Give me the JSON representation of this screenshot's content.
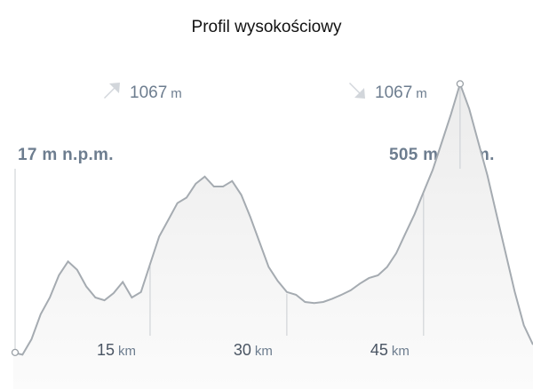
{
  "title": "Profil wysokościowy",
  "stats": {
    "ascent": {
      "value": "1067",
      "unit": "m",
      "icon": "arrow-up-right-icon"
    },
    "descent": {
      "value": "1067",
      "unit": "m",
      "icon": "arrow-down-right-icon"
    }
  },
  "labels": {
    "start_elevation": "17 m n.p.m.",
    "max_elevation": "505 m n.p.m."
  },
  "chart_data": {
    "type": "area",
    "title": "Profil wysokościowy",
    "xlabel": "",
    "ylabel": "",
    "x_unit": "km",
    "y_unit": "m",
    "xlim": [
      0,
      57
    ],
    "ylim": [
      0,
      560
    ],
    "x_ticks": [
      {
        "value": 15,
        "label": "15",
        "unit": "km"
      },
      {
        "value": 30,
        "label": "30",
        "unit": "km"
      },
      {
        "value": 45,
        "label": "45",
        "unit": "km"
      }
    ],
    "x": [
      0,
      1,
      2,
      3,
      4,
      5,
      6,
      7,
      8,
      9,
      10,
      11,
      12,
      13,
      14,
      15,
      16,
      17,
      18,
      19,
      20,
      21,
      22,
      23,
      24,
      25,
      26,
      27,
      28,
      29,
      30,
      31,
      32,
      33,
      34,
      35,
      36,
      37,
      38,
      39,
      40,
      41,
      42,
      43,
      44,
      45,
      46,
      47,
      48,
      49,
      50,
      51,
      52,
      53,
      54,
      55,
      56,
      57
    ],
    "y": [
      21,
      17,
      45,
      90,
      120,
      160,
      185,
      170,
      140,
      120,
      115,
      128,
      148,
      120,
      130,
      180,
      230,
      260,
      290,
      300,
      325,
      338,
      320,
      320,
      330,
      305,
      265,
      220,
      175,
      150,
      130,
      125,
      112,
      110,
      112,
      118,
      125,
      133,
      145,
      155,
      160,
      175,
      200,
      235,
      270,
      310,
      350,
      400,
      450,
      505,
      460,
      400,
      340,
      270,
      200,
      130,
      70,
      35
    ],
    "grid": false,
    "colors": {
      "line": "#9aa0a6",
      "fill": "#efefef",
      "marker": "#ffffff",
      "text": "#6d7d8f"
    }
  }
}
